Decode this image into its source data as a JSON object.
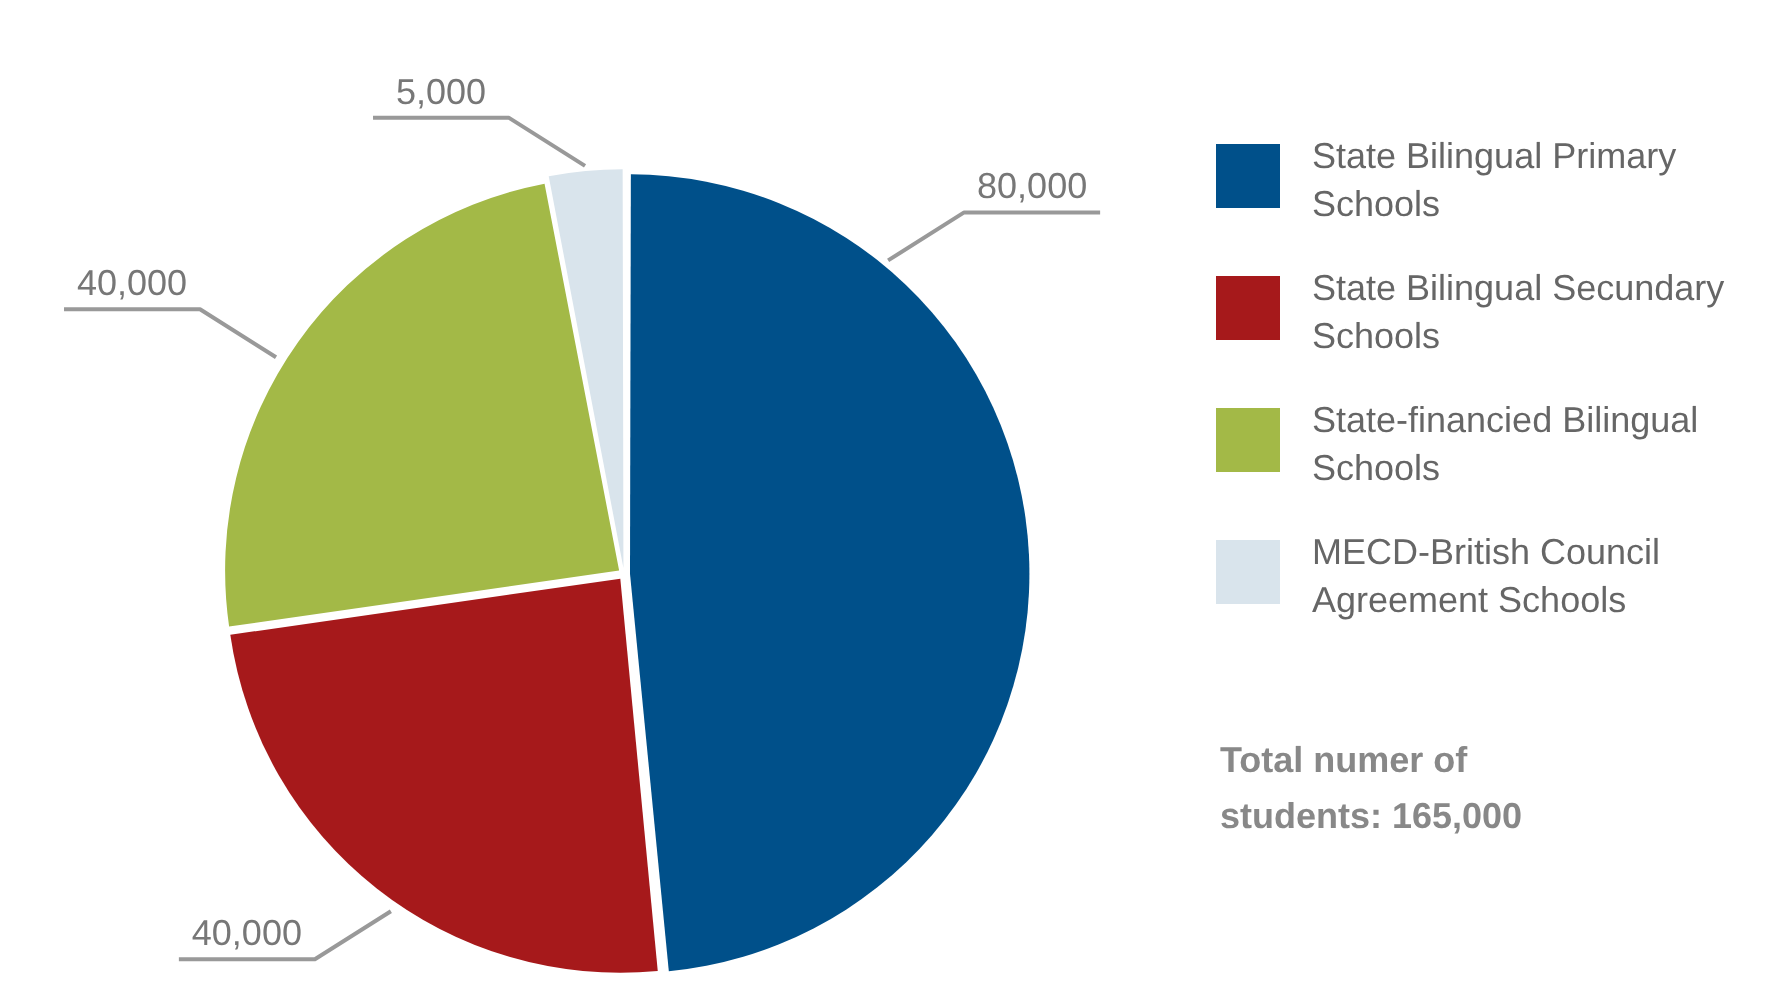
{
  "chart_data": {
    "type": "pie",
    "categories": [
      "State Bilingual Primary Schools",
      "State Bilingual Secundary Schools",
      "State-financied Bilingual Schools",
      "MECD-British Council Agreement Schools"
    ],
    "values": [
      80000,
      40000,
      40000,
      5000
    ],
    "colors": [
      "#00508a",
      "#a6191b",
      "#a3b947",
      "#d9e4ec"
    ],
    "value_labels": [
      "80,000",
      "40,000",
      "40,000",
      "5,000"
    ],
    "legend": "right",
    "annotations": [
      "Total numer of students: 165,000"
    ]
  }
}
